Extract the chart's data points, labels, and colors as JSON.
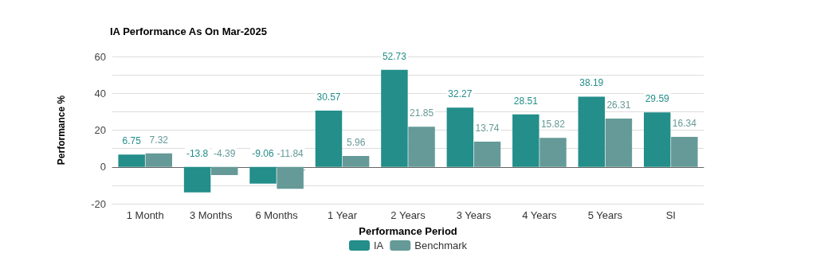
{
  "chart_data": {
    "type": "bar",
    "title": "IA Performance As On Mar-2025",
    "xlabel": "Performance Period",
    "ylabel": "Performance %",
    "categories": [
      "1 Month",
      "3 Months",
      "6 Months",
      "1 Year",
      "2 Years",
      "3 Years",
      "4 Years",
      "5 Years",
      "SI"
    ],
    "series": [
      {
        "name": "IA",
        "color": "#238e8a",
        "values": [
          6.75,
          -13.8,
          -9.06,
          30.57,
          52.73,
          32.27,
          28.51,
          38.19,
          29.59
        ]
      },
      {
        "name": "Benchmark",
        "color": "#659a98",
        "values": [
          7.32,
          -4.39,
          -11.84,
          5.96,
          21.85,
          13.74,
          15.82,
          26.31,
          16.34
        ]
      }
    ],
    "ylim": [
      -20,
      60
    ],
    "yticks": [
      -20,
      {
        "value": -10,
        "label": null
      },
      0,
      {
        "value": 10,
        "label": null
      },
      20,
      {
        "value": 30,
        "label": null
      },
      40,
      {
        "value": 50,
        "label": null
      },
      60
    ],
    "grid": "y",
    "legend": "bottom",
    "data_labels": true
  }
}
